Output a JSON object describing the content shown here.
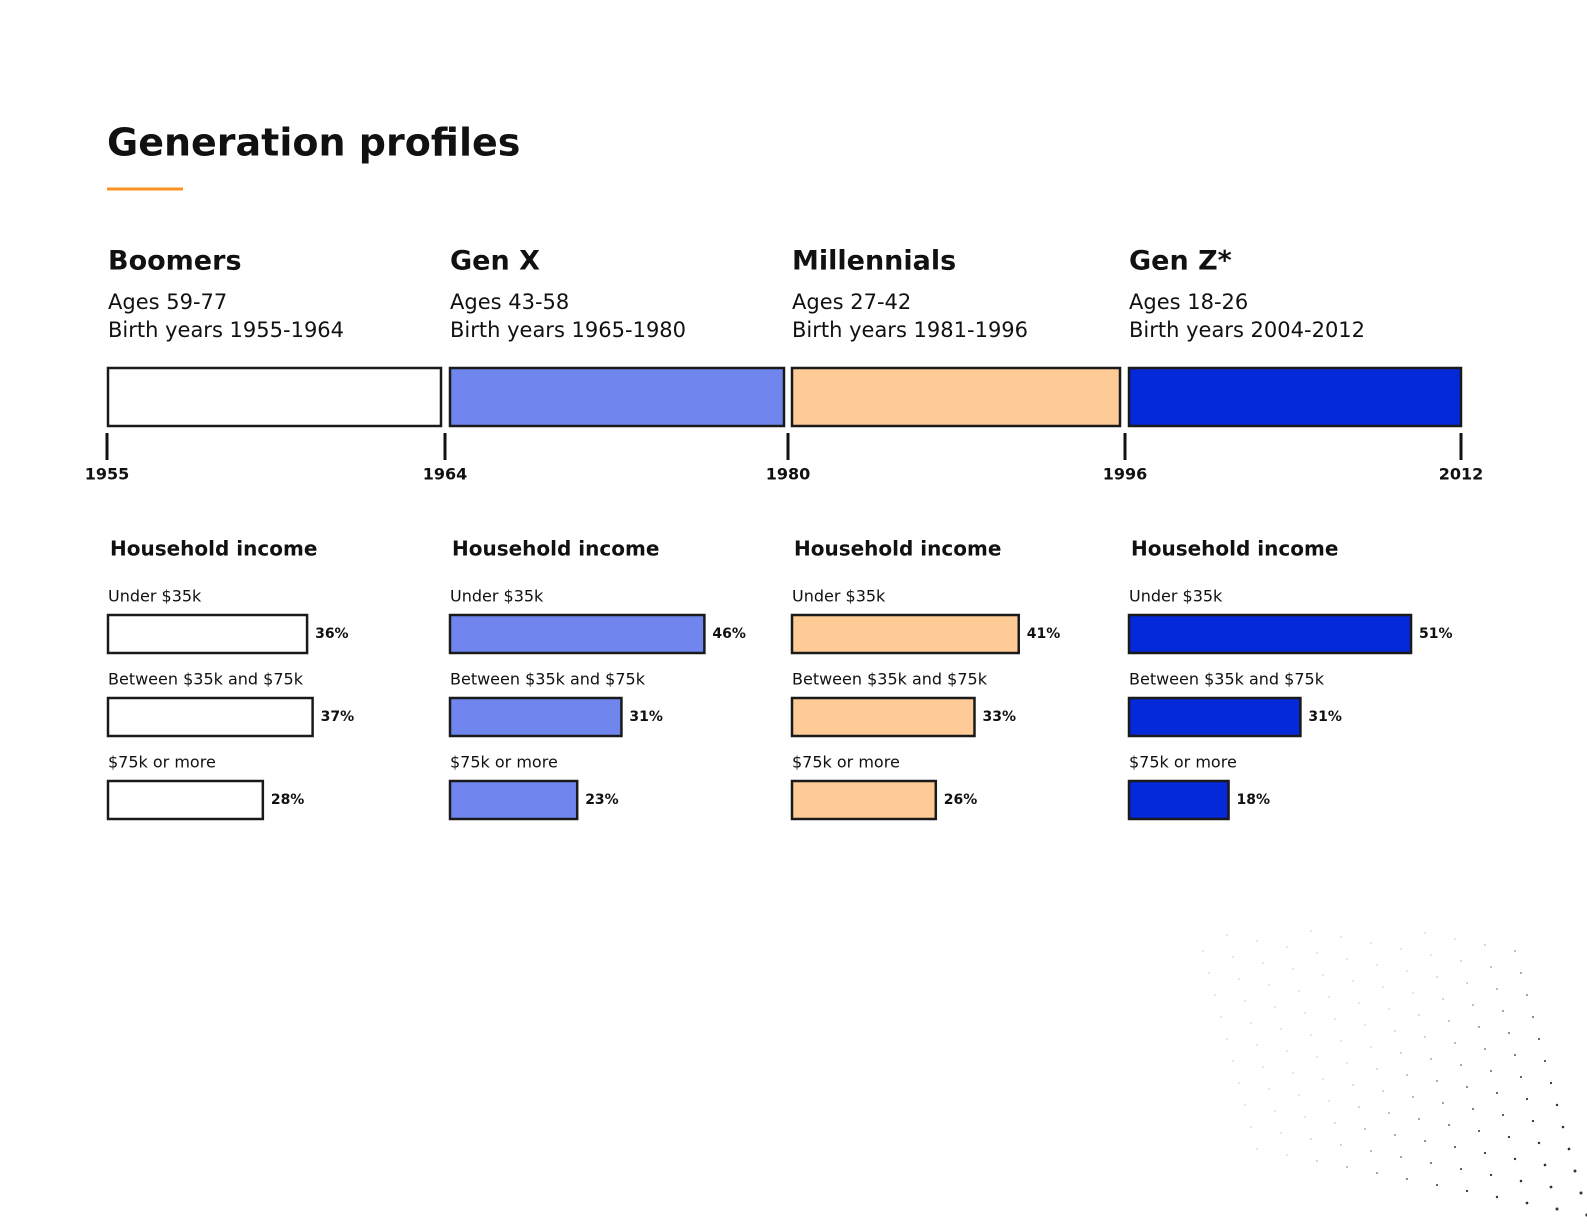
{
  "title": "Generation profiles",
  "timeline": [
    1955,
    1964,
    1980,
    1996,
    2012
  ],
  "chart_data": [
    {
      "type": "bar",
      "generation": "Boomers",
      "ages": "Ages 59-77",
      "birth_years": "Birth years 1955-1964",
      "title": "Household income",
      "color": "#ffffff",
      "categories": [
        "Under $35k",
        "Between $35k and $75k",
        "$75k or more"
      ],
      "values": [
        36,
        37,
        28
      ],
      "value_labels": [
        "36%",
        "37%",
        "28%"
      ],
      "xlim": [
        0,
        100
      ]
    },
    {
      "type": "bar",
      "generation": "Gen X",
      "ages": "Ages 43-58",
      "birth_years": "Birth years 1965-1980",
      "title": "Household income",
      "color": "#7086ee",
      "categories": [
        "Under $35k",
        "Between $35k and $75k",
        "$75k or more"
      ],
      "values": [
        46,
        31,
        23
      ],
      "value_labels": [
        "46%",
        "31%",
        "23%"
      ],
      "xlim": [
        0,
        100
      ]
    },
    {
      "type": "bar",
      "generation": "Millennials",
      "ages": "Ages 27-42",
      "birth_years": "Birth years 1981-1996",
      "title": "Household income",
      "color": "#fecb96",
      "categories": [
        "Under $35k",
        "Between $35k and $75k",
        "$75k or more"
      ],
      "values": [
        41,
        33,
        26
      ],
      "value_labels": [
        "41%",
        "33%",
        "26%"
      ],
      "xlim": [
        0,
        100
      ]
    },
    {
      "type": "bar",
      "generation": "Gen Z*",
      "ages": "Ages 18-26",
      "birth_years": "Birth years 2004-2012",
      "title": "Household income",
      "color": "#0429d9",
      "categories": [
        "Under $35k",
        "Between $35k and $75k",
        "$75k or more"
      ],
      "values": [
        51,
        31,
        18
      ],
      "value_labels": [
        "51%",
        "31%",
        "18%"
      ],
      "xlim": [
        0,
        100
      ]
    }
  ]
}
